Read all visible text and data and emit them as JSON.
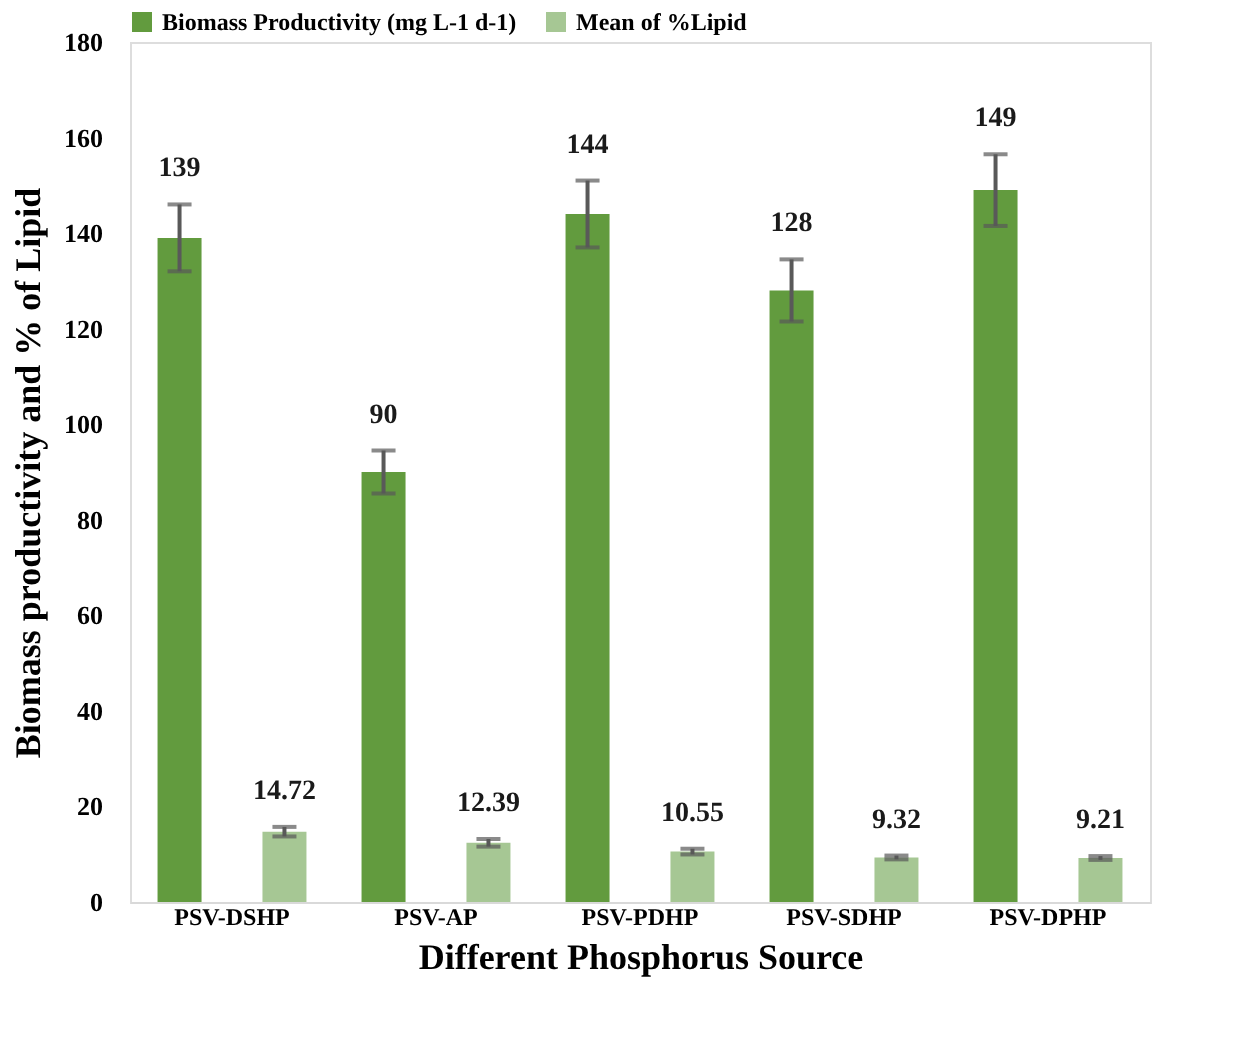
{
  "chart_data": {
    "type": "bar",
    "xlabel": "Different Phosphorus Source",
    "ylabel": "Biomass productivity and % of Lipid",
    "categories": [
      "PSV-DSHP",
      "PSV-AP",
      "PSV-PDHP",
      "PSV-SDHP",
      "PSV-DPHP"
    ],
    "series": [
      {
        "name": "Biomass Productivity  (mg L-1 d-1)",
        "color": "#629b3e",
        "values": [
          139,
          90,
          144,
          128,
          149
        ],
        "errors": [
          7,
          4.5,
          7,
          6.5,
          7.5
        ]
      },
      {
        "name": "Mean of %Lipid",
        "color": "#a6c794",
        "values": [
          14.72,
          12.39,
          10.55,
          9.32,
          9.21
        ],
        "errors": [
          1,
          0.8,
          0.6,
          0.4,
          0.4
        ]
      }
    ],
    "ylim": [
      0,
      180
    ],
    "yticks": [
      0,
      20,
      40,
      60,
      80,
      100,
      120,
      140,
      160,
      180
    ],
    "grid": false,
    "legend": "top",
    "data_labels": true
  }
}
